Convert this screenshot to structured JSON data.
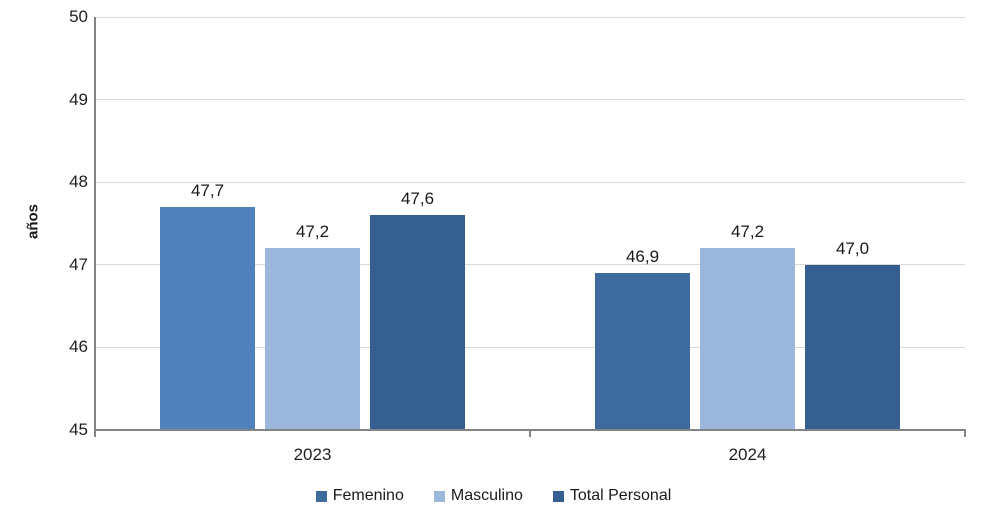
{
  "chart_data": {
    "type": "bar",
    "title": "",
    "xlabel": "",
    "ylabel": "años",
    "categories": [
      "2023",
      "2024"
    ],
    "series": [
      {
        "name": "Femenino",
        "values": [
          47.7,
          46.9
        ],
        "value_labels": [
          "47,7",
          "46,9"
        ],
        "legend_color": "#3e6b9d",
        "bar_colors": [
          "#4f81bd",
          "#3e6b9d"
        ]
      },
      {
        "name": "Masculino",
        "values": [
          47.2,
          47.2
        ],
        "value_labels": [
          "47,2",
          "47,2"
        ],
        "legend_color": "#9bb7db",
        "bar_colors": [
          "#9bb7db",
          "#9bb7db"
        ]
      },
      {
        "name": "Total Personal",
        "values": [
          47.6,
          47.0
        ],
        "value_labels": [
          "47,6",
          "47,0"
        ],
        "legend_color": "#365f91",
        "bar_colors": [
          "#365f91",
          "#365f91"
        ]
      }
    ],
    "ylim": [
      45,
      50
    ],
    "yticks": [
      45,
      46,
      47,
      48,
      49,
      50
    ],
    "ytick_labels": [
      "45",
      "46",
      "47",
      "48",
      "49",
      "50"
    ],
    "grid": true,
    "legend_position": "bottom",
    "colors": {
      "axis_line": "#848484",
      "gridline": "#d9d9d9",
      "text": "#1f1f1f",
      "background": "#ffffff"
    }
  }
}
